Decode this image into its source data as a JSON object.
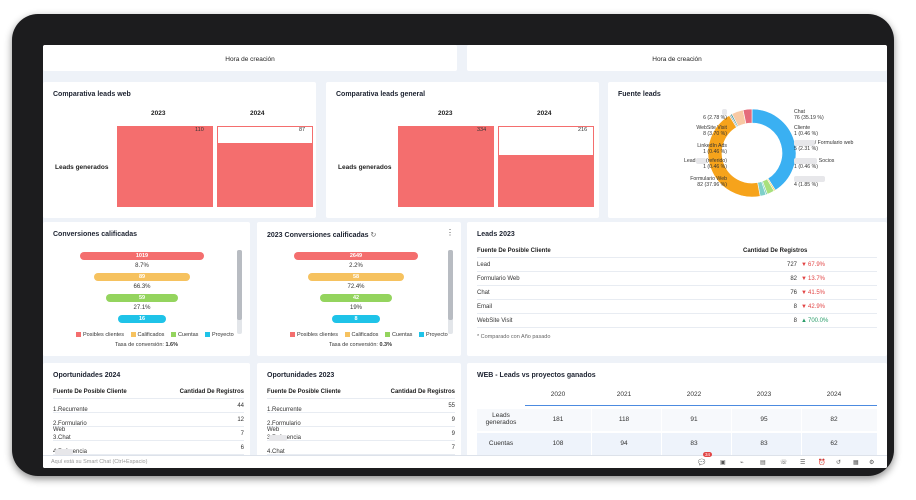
{
  "top_cards": {
    "left_axis_label": "Hora de creación",
    "right_axis_label": "Hora de creación"
  },
  "web_leads": {
    "title": "Comparativa leads web",
    "row_label": "Leads generados",
    "chart_data": {
      "type": "bar",
      "categories": [
        "2023",
        "2024"
      ],
      "values": [
        110,
        87
      ],
      "ylim": [
        0,
        110
      ],
      "row_label": "Leads generados"
    }
  },
  "general_leads": {
    "title": "Comparativa leads general",
    "row_label": "Leads generados",
    "chart_data": {
      "type": "bar",
      "categories": [
        "2023",
        "2024"
      ],
      "values": [
        334,
        216
      ],
      "ylim": [
        0,
        334
      ],
      "row_label": "Leads generados"
    }
  },
  "lead_source": {
    "title": "Fuente leads",
    "chart_data": {
      "type": "pie",
      "donut": true,
      "slices": [
        {
          "label": "Chat",
          "value": 76,
          "pct": "35.19 %",
          "color": "#3ab0f2"
        },
        {
          "label": "Cliente",
          "value": 1,
          "pct": "0.46 %",
          "color": "#f2c84b"
        },
        {
          "label": "/ Formulario web",
          "value": 5,
          "pct": "2.31 %",
          "color": "#a8e07d"
        },
        {
          "label": "Socios",
          "value": 1,
          "pct": "0.46 %",
          "color": "#58c0a8"
        },
        {
          "label": "",
          "value": 4,
          "pct": "1.85 %",
          "color": "#7fd0c9"
        },
        {
          "label": "Formulario Web",
          "value": 82,
          "pct": "37.96 %",
          "color": "#f6a31b"
        },
        {
          "label": "Lead (referido)",
          "value": 1,
          "pct": "0.46 %",
          "color": "#9aa4b0"
        },
        {
          "label": "LinkedIn Ads",
          "value": 1,
          "pct": "0.46 %",
          "color": "#1f8a8a"
        },
        {
          "label": "WebSite Visit",
          "value": 8,
          "pct": "3.70 %",
          "color": "#f8c9a4"
        },
        {
          "label": "",
          "value": 6,
          "pct": "2.78 %",
          "color": "#e56c7b"
        }
      ],
      "labels_text": {
        "chat": "Chat",
        "chat_v": "76 (35.19 %)",
        "cliente": "Cliente",
        "cliente_v": "1 (0.46 %)",
        "fw2": "/ Formulario web",
        "fw2_v": "5 (2.31 %)",
        "socios": "Socios",
        "socios_v": "1 (0.46 %)",
        "r5_v": "4 (1.85 %)",
        "l1_v": "6 (2.78 %)",
        "website": "WebSite Visit",
        "website_v": "8 (3.70 %)",
        "linkedin": "LinkedIn Ads",
        "linkedin_v": "1 (0.46 %)",
        "lead_ref": "(referido)",
        "lead_prefix": "Lead",
        "lead_ref_v": "1 (0.46 %)",
        "fw": "Formulario Web",
        "fw_v": "82 (37.96 %)"
      }
    }
  },
  "conv_calif": {
    "title": "Conversiones calificadas",
    "chart_data": {
      "type": "funnel",
      "stages": [
        {
          "label": "Posibles clientes",
          "value": "1019",
          "color": "#f46e6e"
        },
        {
          "label": "Calificados",
          "value": "89",
          "color": "#f6c25f"
        },
        {
          "label": "Cuentas",
          "value": "59",
          "color": "#94d45e"
        },
        {
          "label": "Proyecto",
          "value": "16",
          "color": "#1fc3e8"
        }
      ],
      "rates": [
        "8.7%",
        "66.3%",
        "27.1%"
      ]
    },
    "rate_label": "Tasa de conversión:",
    "rate_value": "1.6%"
  },
  "conv_calif_2023": {
    "title": "2023 Conversiones calificadas",
    "chart_data": {
      "type": "funnel",
      "stages": [
        {
          "label": "Posibles clientes",
          "value": "2649",
          "color": "#f46e6e"
        },
        {
          "label": "Calificados",
          "value": "58",
          "color": "#f6c25f"
        },
        {
          "label": "Cuentas",
          "value": "42",
          "color": "#94d45e"
        },
        {
          "label": "Proyecto",
          "value": "8",
          "color": "#1fc3e8"
        }
      ],
      "rates": [
        "2.2%",
        "72.4%",
        "19%"
      ]
    },
    "rate_label": "Tasa de conversión:",
    "rate_value": "0.3%"
  },
  "leads2023": {
    "title": "Leads 2023",
    "col1": "Fuente De Posible Cliente",
    "col2": "Cantidad De Registros",
    "rows": [
      {
        "name": "Lead",
        "count": "727",
        "delta": "67.9%",
        "dir": "down"
      },
      {
        "name": "Formulario Web",
        "count": "82",
        "delta": "13.7%",
        "dir": "down"
      },
      {
        "name": "Chat",
        "count": "76",
        "delta": "41.5%",
        "dir": "down"
      },
      {
        "name": "Email",
        "count": "8",
        "delta": "42.9%",
        "dir": "down"
      },
      {
        "name": "WebSite Visit",
        "count": "8",
        "delta": "700.0%",
        "dir": "up"
      }
    ],
    "footnote": "* Comparado con Año pasado"
  },
  "opp2024": {
    "title": "Oportunidades 2024",
    "col1": "Fuente De Posible Cliente",
    "col2": "Cantidad De Registros",
    "rows": [
      {
        "name": "1.Recurrente",
        "count": "44"
      },
      {
        "name": "2.Formulario Web",
        "count": "12"
      },
      {
        "name": "3.Chat",
        "count": "7"
      },
      {
        "name": "4.Referencia",
        "count": "6"
      }
    ]
  },
  "opp2023": {
    "title": "Oportunidades 2023",
    "col1": "Fuente De Posible Cliente",
    "col2": "Cantidad De Registros",
    "rows": [
      {
        "name": "1.Recurrente",
        "count": "55"
      },
      {
        "name": "2.Formulario Web",
        "count": "9"
      },
      {
        "name": "3.Referencia",
        "count": "9"
      },
      {
        "name": "4.Chat",
        "count": "7"
      }
    ]
  },
  "web_vs_projects": {
    "title": "WEB - Leads vs proyectos ganados",
    "years": [
      "2020",
      "2021",
      "2022",
      "2023",
      "2024"
    ],
    "rows": [
      {
        "label": "Leads generados",
        "values": [
          "181",
          "118",
          "91",
          "95",
          "82"
        ]
      },
      {
        "label": "Cuentas",
        "values": [
          "108",
          "94",
          "83",
          "83",
          "62"
        ]
      }
    ]
  },
  "statusbar": {
    "hint": "Aquí está su Smart Chat (Ctrl+Espacio)",
    "badge": "34"
  }
}
